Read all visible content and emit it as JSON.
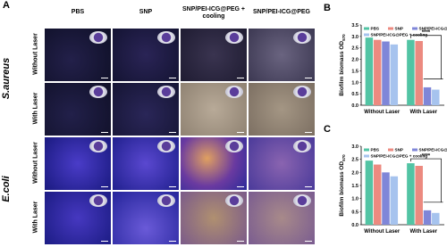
{
  "panel_a": {
    "label": "A",
    "columns": [
      "PBS",
      "SNP",
      "SNP/PEI-ICG@PEG + cooling",
      "SNP/PEI-ICG@PEG"
    ],
    "species": [
      "S.aureus",
      "E.coli"
    ],
    "conditions": [
      "Without Laser",
      "With Laser",
      "Without Laser",
      "With Laser"
    ]
  },
  "chart_data": [
    {
      "type": "bar",
      "panel_label": "B",
      "y_label": {
        "text": "Biofilm biomass OD",
        "subscript": "570"
      },
      "categories": [
        "Without Laser",
        "With Laser"
      ],
      "series": [
        {
          "name": "PBS",
          "color": "#52c4a4",
          "values": [
            2.95,
            2.85
          ]
        },
        {
          "name": "SNP",
          "color": "#ec8a80",
          "values": [
            2.85,
            2.8
          ]
        },
        {
          "name": "SNP/PEI-ICG@PEG",
          "color": "#7f86d8",
          "values": [
            2.78,
            0.78
          ]
        },
        {
          "name": "SNP/PEI-ICG@PEG + cooling",
          "color": "#a6c3ee",
          "values": [
            2.65,
            0.68
          ]
        }
      ],
      "ylim": [
        0,
        3.5
      ],
      "yticks": [
        {
          "value": 0,
          "label": "0.0"
        },
        0.5,
        {
          "value": 1,
          "label": "1.0"
        },
        1.5,
        {
          "value": 2,
          "label": "2.0"
        },
        2.5,
        {
          "value": 3,
          "label": "3.0"
        },
        3.5
      ],
      "annotation": "****"
    },
    {
      "type": "bar",
      "panel_label": "C",
      "y_label": {
        "text": "Biofilm biomass OD",
        "subscript": "570"
      },
      "categories": [
        "Without Laser",
        "With Laser"
      ],
      "series": [
        {
          "name": "PBS",
          "color": "#52c4a4",
          "values": [
            2.45,
            2.35
          ]
        },
        {
          "name": "SNP",
          "color": "#ec8a80",
          "values": [
            2.3,
            2.25
          ]
        },
        {
          "name": "SNP/PEI-ICG@PEG",
          "color": "#7f86d8",
          "values": [
            2.0,
            0.55
          ]
        },
        {
          "name": "SNP/PEI-ICG@PEG + cooling",
          "color": "#a6c3ee",
          "values": [
            1.85,
            0.45
          ]
        }
      ],
      "ylim": [
        0,
        3.0
      ],
      "yticks": [
        {
          "value": 0,
          "label": "0.0"
        },
        0.5,
        {
          "value": 1,
          "label": "1.0"
        },
        1.5,
        {
          "value": 2,
          "label": "2.0"
        },
        2.5,
        {
          "value": 3,
          "label": "3.0"
        }
      ],
      "annotation": "****"
    }
  ]
}
